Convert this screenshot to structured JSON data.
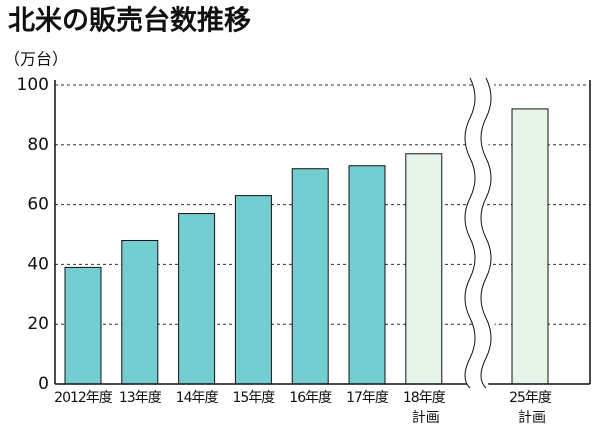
{
  "chart_data": {
    "type": "bar",
    "title": "北米の販売台数推移",
    "unit_label": "（万台）",
    "categories": [
      "2012年度",
      "13年度",
      "14年度",
      "15年度",
      "16年度",
      "17年度",
      "18年度",
      "25年度"
    ],
    "category_notes": [
      null,
      null,
      null,
      null,
      null,
      null,
      "計画",
      "計画"
    ],
    "values": [
      39,
      48,
      57,
      63,
      72,
      73,
      77,
      92
    ],
    "colors": [
      "#74cdd0",
      "#74cdd0",
      "#74cdd0",
      "#74cdd0",
      "#74cdd0",
      "#74cdd0",
      "#e6f4e9",
      "#e6f4e9"
    ],
    "ylim": [
      0,
      100
    ],
    "yticks": [
      0,
      20,
      40,
      60,
      80,
      100
    ],
    "grid": true
  }
}
